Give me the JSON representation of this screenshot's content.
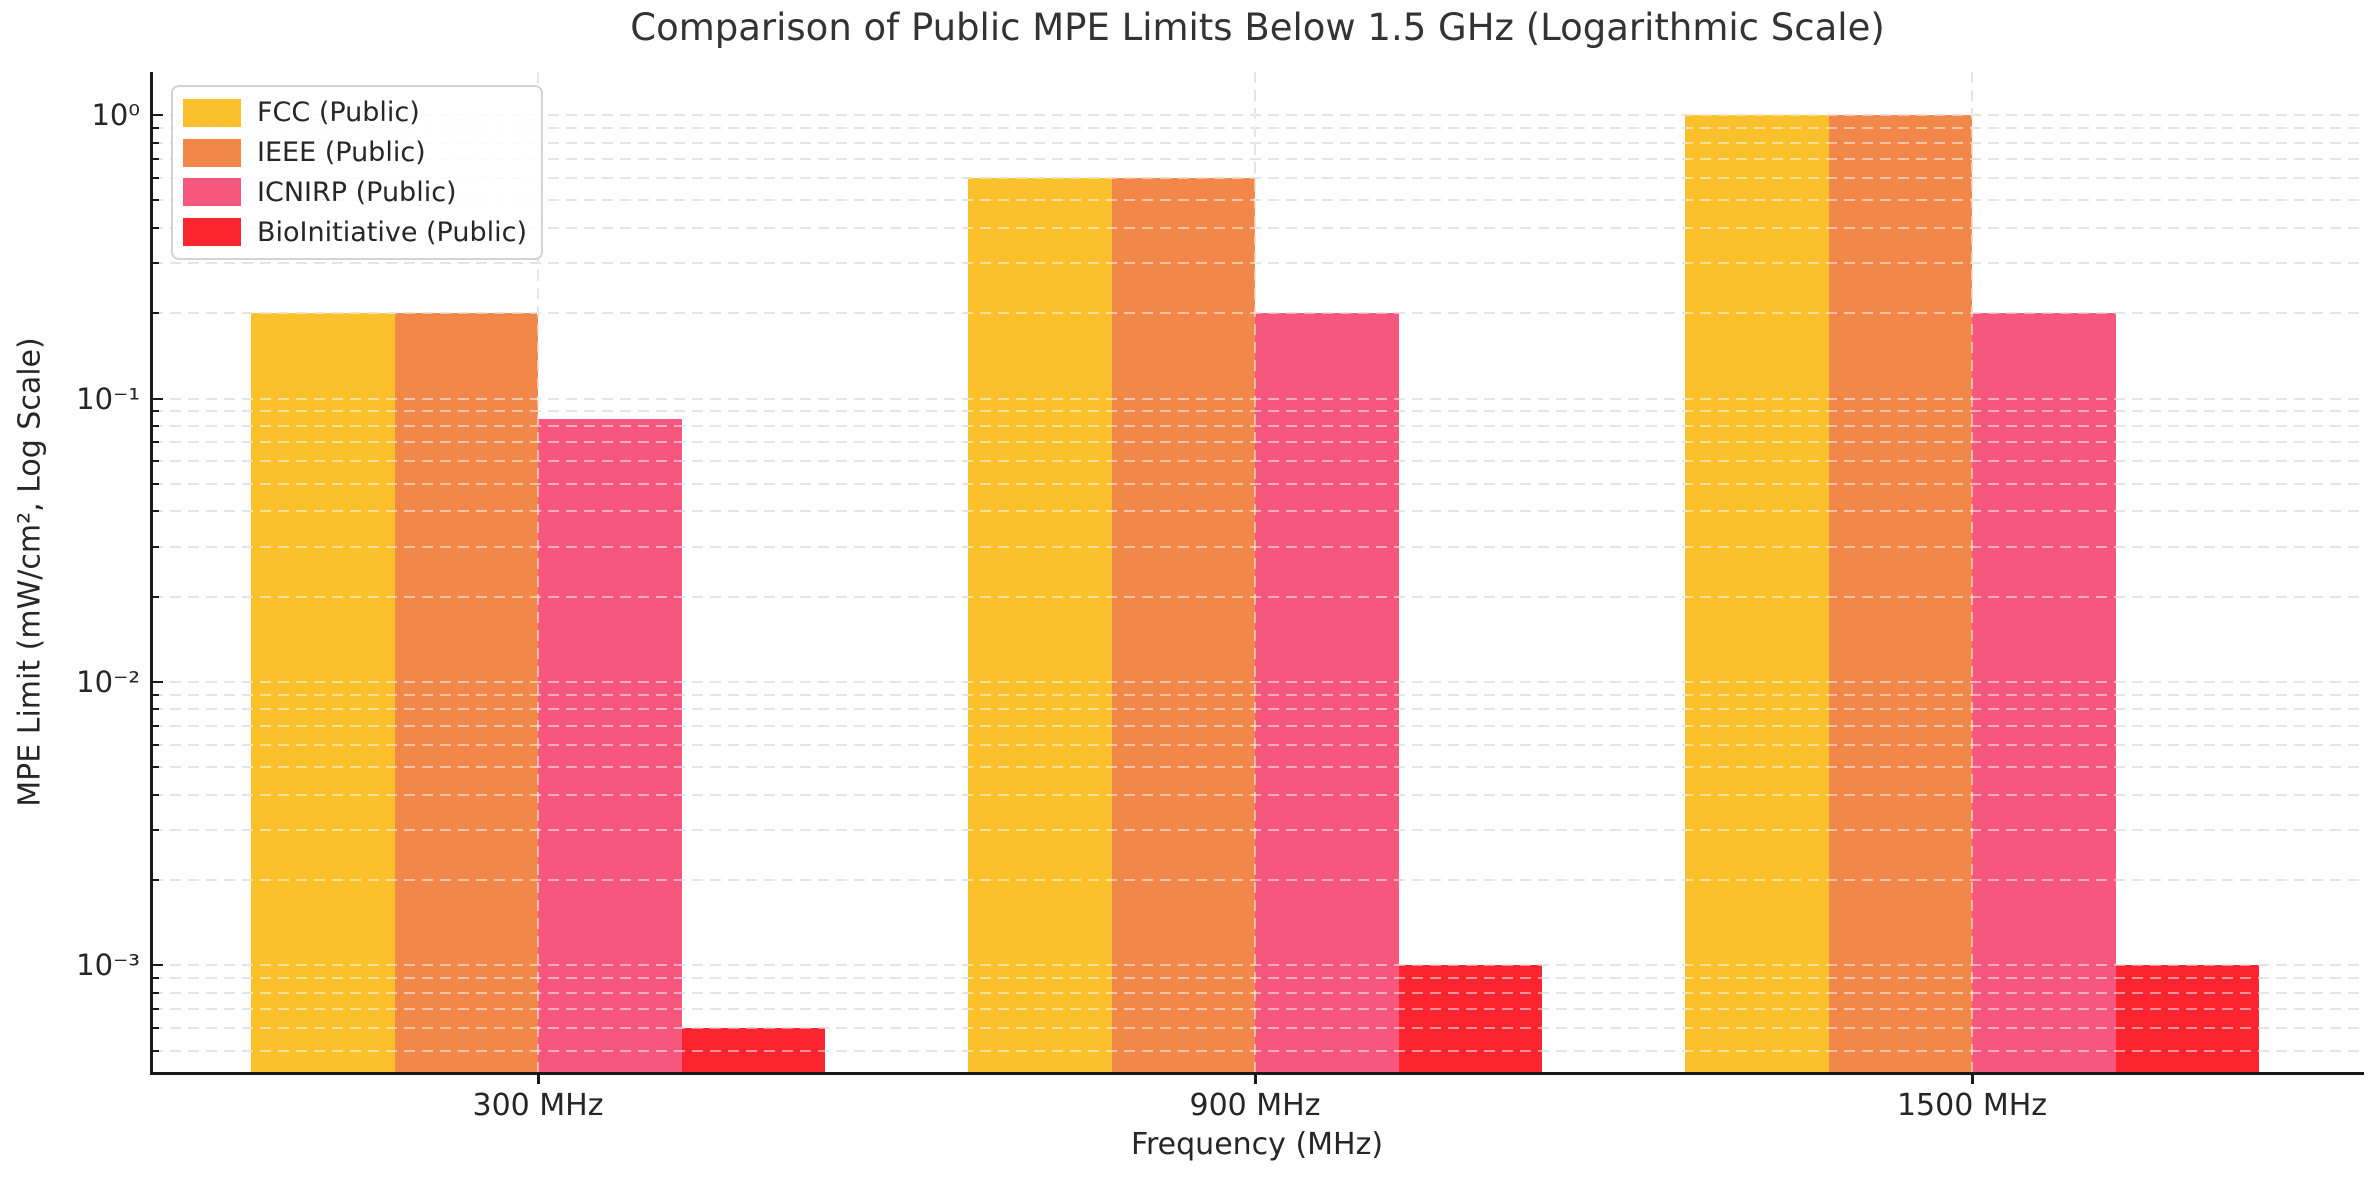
{
  "figure": {
    "background": "#ffffff"
  },
  "chart_data": {
    "type": "bar",
    "title": "Comparison of Public MPE Limits Below 1.5 GHz (Logarithmic Scale)",
    "xlabel": "Frequency (MHz)",
    "ylabel": "MPE Limit (mW/cm², Log Scale)",
    "yscale": "log",
    "grid": true,
    "grid_color": "#cbcbcb",
    "text_color": "#262626",
    "categories": [
      "300 MHz",
      "900 MHz",
      "1500 MHz"
    ],
    "series": [
      {
        "name": "FCC (Public)",
        "color": "#FBC12D",
        "values": [
          0.2,
          0.6,
          1.0
        ]
      },
      {
        "name": "IEEE (Public)",
        "color": "#F1884A",
        "values": [
          0.2,
          0.6,
          1.0
        ]
      },
      {
        "name": "ICNIRP (Public)",
        "color": "#F5577D",
        "values": [
          0.085,
          0.2,
          0.2
        ]
      },
      {
        "name": "BioInitiative (Public)",
        "color": "#FA252F",
        "values": [
          0.0006,
          0.001,
          0.001
        ]
      }
    ],
    "y_ticks": [
      {
        "label": "10⁰",
        "value": 1
      },
      {
        "label": "10⁻¹",
        "value": 0.1
      },
      {
        "label": "10⁻²",
        "value": 0.01
      },
      {
        "label": "10⁻³",
        "value": 0.001
      }
    ],
    "ylim": [
      0.00042,
      1.42
    ],
    "legend_position": "upper left"
  }
}
